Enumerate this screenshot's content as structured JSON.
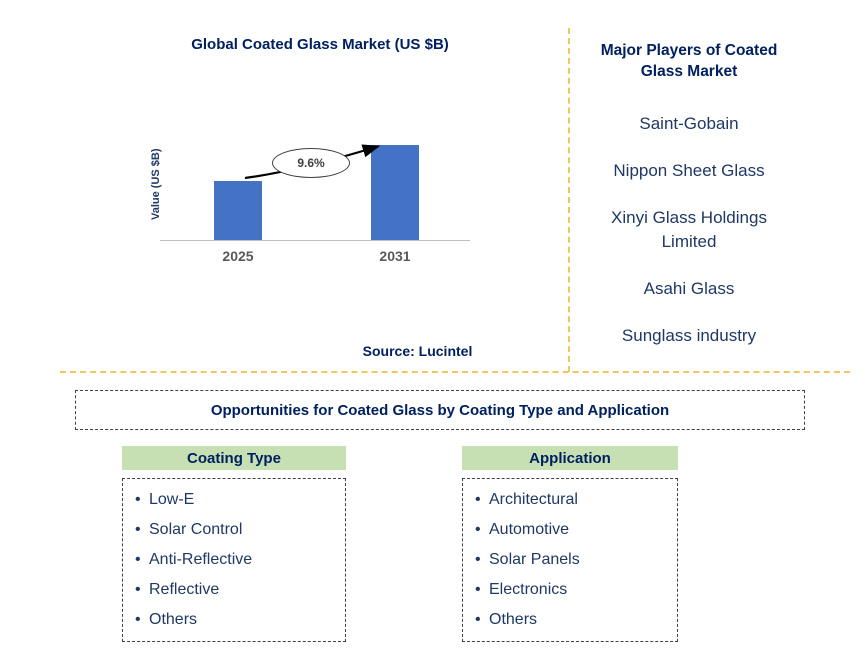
{
  "colors": {
    "title_navy": "#002060",
    "text_navy": "#1F3864",
    "bar_blue": "#4472C4",
    "header_green": "#C6E0B4",
    "dash_gold": "#EDC85E",
    "axis_gray": "#BFBFBF",
    "year_gray": "#595959"
  },
  "chart_data": {
    "type": "bar",
    "title": "Global Coated Glass Market (US $B)",
    "ylabel": "Value (US $B)",
    "categories": [
      "2025",
      "2031"
    ],
    "values": [
      1.0,
      1.6
    ],
    "value_scale": "relative (no axis tick values shown)",
    "annotation": "9.6%",
    "bar_color": "#4472C4",
    "source": "Source: Lucintel",
    "grid": false,
    "legend": false
  },
  "players": {
    "title": "Major Players of Coated Glass Market",
    "items": [
      "Saint-Gobain",
      "Nippon Sheet Glass",
      "Xinyi Glass Holdings Limited",
      "Asahi Glass",
      "Sunglass industry"
    ]
  },
  "opportunities": {
    "title": "Opportunities for Coated Glass by Coating Type and Application",
    "columns": [
      {
        "header": "Coating Type",
        "items": [
          "Low-E",
          "Solar Control",
          "Anti-Reflective",
          "Reflective",
          "Others"
        ]
      },
      {
        "header": "Application",
        "items": [
          "Architectural",
          "Automotive",
          "Solar Panels",
          "Electronics",
          "Others"
        ]
      }
    ]
  }
}
